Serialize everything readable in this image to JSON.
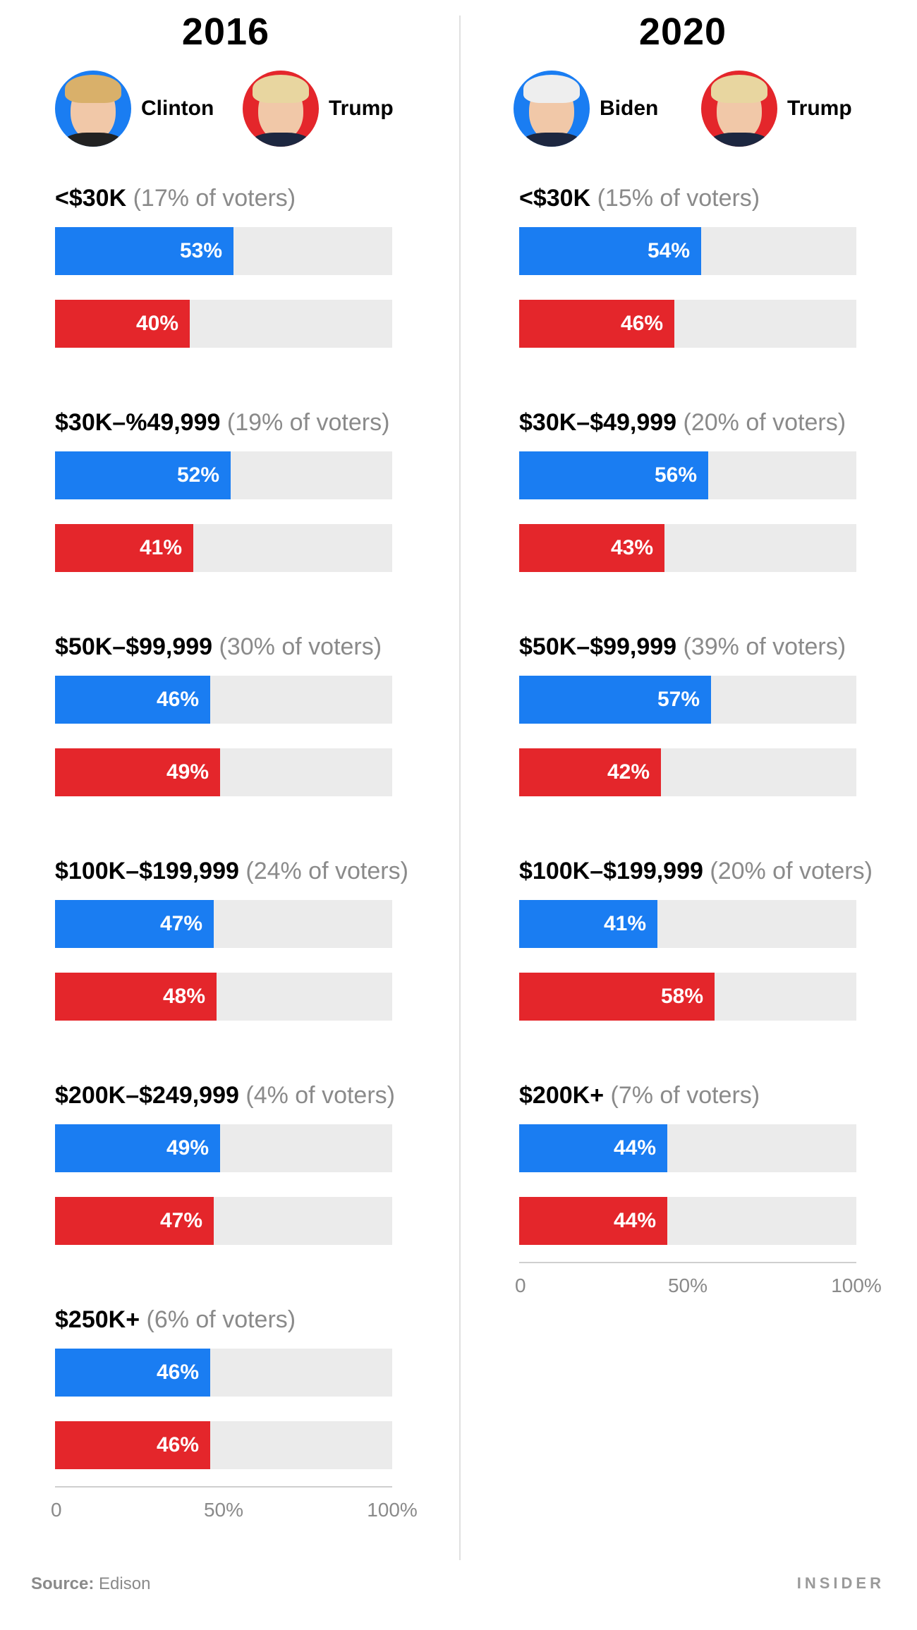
{
  "colors": {
    "blue": "#1a7df2",
    "red": "#e4262b",
    "track": "#ebebeb",
    "muted": "#8a8a8a"
  },
  "source_label": "Source:",
  "source_value": "Edison",
  "brand": "INSIDER",
  "chart_data": [
    {
      "type": "bar",
      "title": "2016",
      "candidates": [
        {
          "name": "Clinton",
          "color": "#1a7df2"
        },
        {
          "name": "Trump",
          "color": "#e4262b"
        }
      ],
      "xlim": [
        0,
        100
      ],
      "xticks": [
        "0",
        "50%",
        "100%"
      ],
      "groups": [
        {
          "label": "<$30K",
          "share": "(17% of voters)",
          "values": [
            53,
            40
          ]
        },
        {
          "label": "$30K–%49,999",
          "share": "(19% of voters)",
          "values": [
            52,
            41
          ]
        },
        {
          "label": "$50K–$99,999",
          "share": "(30% of voters)",
          "values": [
            46,
            49
          ]
        },
        {
          "label": "$100K–$199,999",
          "share": "(24% of voters)",
          "values": [
            47,
            48
          ]
        },
        {
          "label": "$200K–$249,999",
          "share": "(4% of voters)",
          "values": [
            49,
            47
          ]
        },
        {
          "label": "$250K+",
          "share": "(6% of voters)",
          "values": [
            46,
            46
          ]
        }
      ]
    },
    {
      "type": "bar",
      "title": "2020",
      "candidates": [
        {
          "name": "Biden",
          "color": "#1a7df2"
        },
        {
          "name": "Trump",
          "color": "#e4262b"
        }
      ],
      "xlim": [
        0,
        100
      ],
      "xticks": [
        "0",
        "50%",
        "100%"
      ],
      "groups": [
        {
          "label": "<$30K",
          "share": "(15% of voters)",
          "values": [
            54,
            46
          ]
        },
        {
          "label": "$30K–$49,999",
          "share": "(20% of voters)",
          "values": [
            56,
            43
          ]
        },
        {
          "label": "$50K–$99,999",
          "share": "(39% of voters)",
          "values": [
            57,
            42
          ]
        },
        {
          "label": "$100K–$199,999",
          "share": "(20% of voters)",
          "values": [
            41,
            58
          ]
        },
        {
          "label": "$200K+",
          "share": "(7% of voters)",
          "values": [
            44,
            44
          ]
        }
      ]
    }
  ]
}
